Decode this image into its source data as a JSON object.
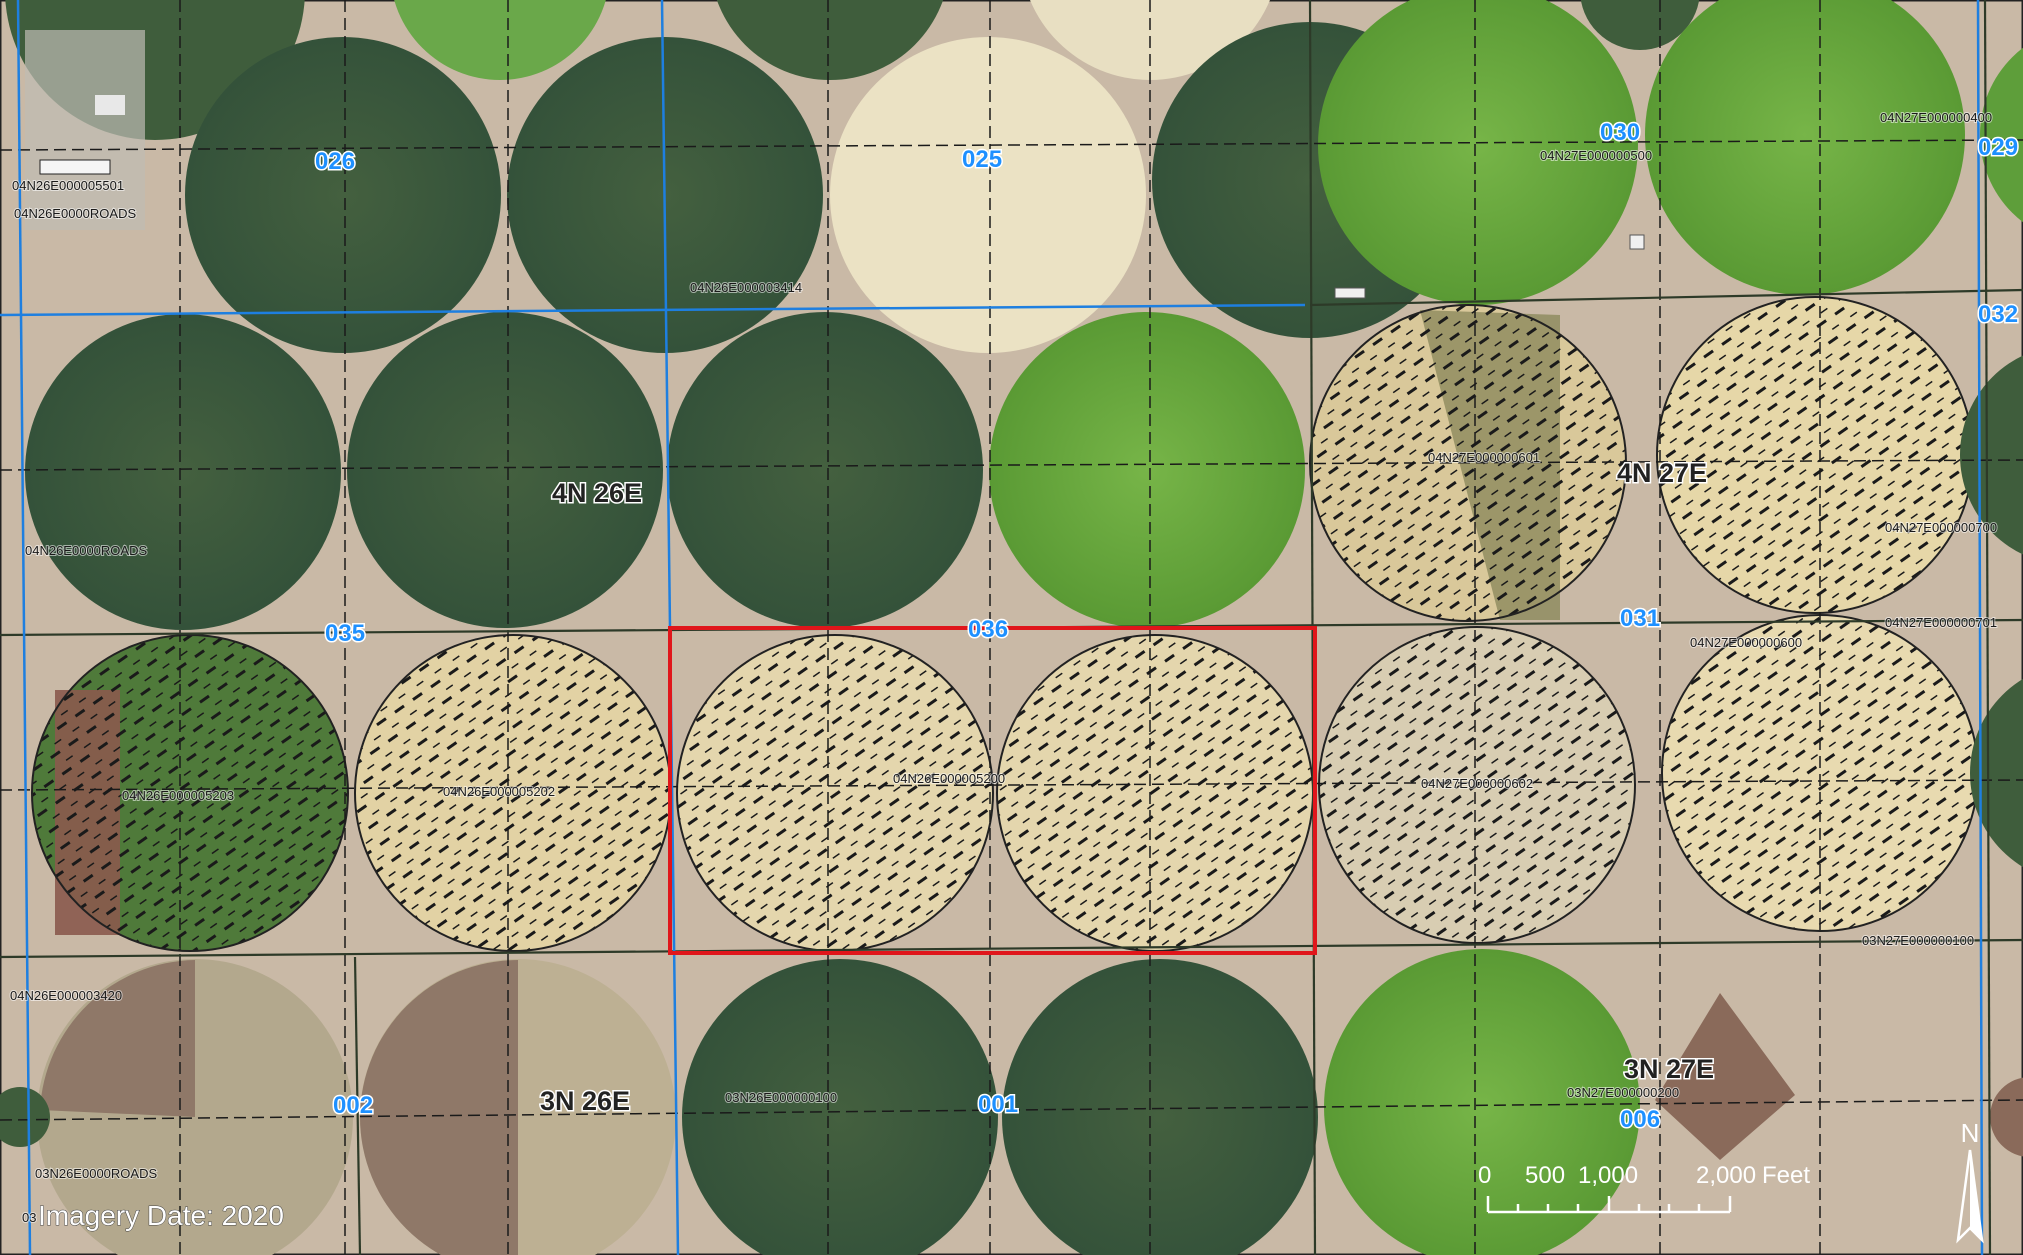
{
  "map": {
    "colors": {
      "ground": "#c8b8a6",
      "dark_crop": "#3a5a3a",
      "bright_crop": "#6aa83c",
      "pale_crop": "#e6dcb8",
      "tan_crop": "#dccba0",
      "brown_crop": "#9a8070",
      "section_line": "#1e7fe0",
      "subject_outline": "#e0161b",
      "hatch": "#1a1a1a"
    },
    "township_labels": [
      {
        "id": "twp-4n26e",
        "text": "4N 26E"
      },
      {
        "id": "twp-4n27e",
        "text": "4N 27E"
      },
      {
        "id": "twp-3n26e",
        "text": "3N 26E"
      },
      {
        "id": "twp-3n27e",
        "text": "3N 27E"
      }
    ],
    "section_labels": [
      {
        "id": "sec-026",
        "text": "026"
      },
      {
        "id": "sec-025",
        "text": "025"
      },
      {
        "id": "sec-030",
        "text": "030"
      },
      {
        "id": "sec-029",
        "text": "029"
      },
      {
        "id": "sec-032",
        "text": "032"
      },
      {
        "id": "sec-035",
        "text": "035"
      },
      {
        "id": "sec-036",
        "text": "036"
      },
      {
        "id": "sec-031",
        "text": "031"
      },
      {
        "id": "sec-002",
        "text": "002"
      },
      {
        "id": "sec-001",
        "text": "001"
      },
      {
        "id": "sec-006",
        "text": "006"
      }
    ],
    "parcel_labels": [
      {
        "id": "p-05501",
        "text": "04N26E000005501"
      },
      {
        "id": "p-roads-top",
        "text": "04N26E0000ROADS"
      },
      {
        "id": "p-03414",
        "text": "04N26E000003414"
      },
      {
        "id": "p-00400",
        "text": "04N27E000000400"
      },
      {
        "id": "p-00500",
        "text": "04N27E000000500"
      },
      {
        "id": "p-00601",
        "text": "04N27E000000601"
      },
      {
        "id": "p-00700",
        "text": "04N27E000000700"
      },
      {
        "id": "p-roads-mid",
        "text": "04N26E0000ROADS"
      },
      {
        "id": "p-00701",
        "text": "04N27E000000701"
      },
      {
        "id": "p-00600",
        "text": "04N27E000000600"
      },
      {
        "id": "p-05203",
        "text": "04N26E000005203"
      },
      {
        "id": "p-05202",
        "text": "04N26E000005202"
      },
      {
        "id": "p-05200",
        "text": "04N26E000005200"
      },
      {
        "id": "p-00602",
        "text": "04N27E000000602"
      },
      {
        "id": "p-3-00100",
        "text": "03N27E000000100"
      },
      {
        "id": "p-03420",
        "text": "04N26E000003420"
      },
      {
        "id": "p-3n26-00100",
        "text": "03N26E000000100"
      },
      {
        "id": "p-3-00200",
        "text": "03N27E000000200"
      },
      {
        "id": "p-3roads",
        "text": "03N26E0000ROADS"
      },
      {
        "id": "p-03-frag",
        "text": "03"
      }
    ],
    "imagery_note": "Imagery Date: 2020",
    "scale_bar": {
      "ticks": [
        "0",
        "500",
        "1,000",
        "2,000"
      ],
      "unit": "Feet"
    },
    "north_arrow": {
      "label": "N",
      "icon": "north-arrow-icon"
    }
  }
}
